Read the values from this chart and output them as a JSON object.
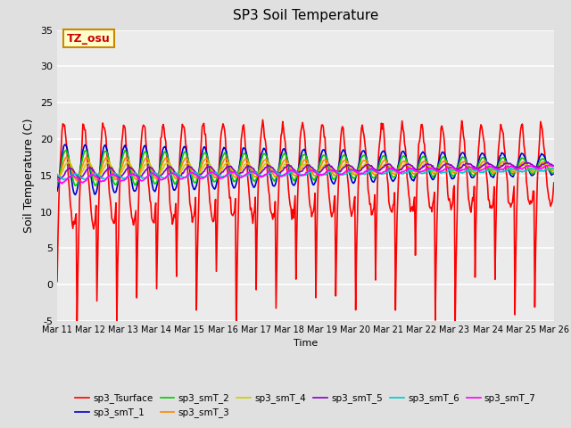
{
  "title": "SP3 Soil Temperature",
  "xlabel": "Time",
  "ylabel": "Soil Temperature (C)",
  "ylim": [
    -5,
    35
  ],
  "xlim": [
    0,
    25
  ],
  "x_tick_positions": [
    0,
    1,
    2,
    3,
    4,
    5,
    6,
    7,
    8,
    9,
    10,
    11,
    12,
    13,
    14,
    15
  ],
  "x_tick_labels": [
    "Mar 11",
    "Mar 12",
    "Mar 13",
    "Mar 14",
    "Mar 15",
    "Mar 16",
    "Mar 17",
    "Mar 18",
    "Mar 19",
    "Mar 20",
    "Mar 21",
    "Mar 22",
    "Mar 23",
    "Mar 24",
    "Mar 25",
    "Mar 26"
  ],
  "yticks": [
    -5,
    0,
    5,
    10,
    15,
    20,
    25,
    30,
    35
  ],
  "annotation": "TZ_osu",
  "bg_color": "#e0e0e0",
  "plot_bg_color": "#ebebeb",
  "series_order": [
    "sp3_Tsurface",
    "sp3_smT_1",
    "sp3_smT_2",
    "sp3_smT_3",
    "sp3_smT_4",
    "sp3_smT_5",
    "sp3_smT_6",
    "sp3_smT_7"
  ],
  "series": {
    "sp3_Tsurface": {
      "color": "#ff0000",
      "lw": 1.2
    },
    "sp3_smT_1": {
      "color": "#0000cc",
      "lw": 1.2
    },
    "sp3_smT_2": {
      "color": "#00cc00",
      "lw": 1.2
    },
    "sp3_smT_3": {
      "color": "#ff8800",
      "lw": 1.2
    },
    "sp3_smT_4": {
      "color": "#cccc00",
      "lw": 1.2
    },
    "sp3_smT_5": {
      "color": "#8800cc",
      "lw": 1.2
    },
    "sp3_smT_6": {
      "color": "#00cccc",
      "lw": 1.2
    },
    "sp3_smT_7": {
      "color": "#ff00ff",
      "lw": 1.2
    }
  }
}
